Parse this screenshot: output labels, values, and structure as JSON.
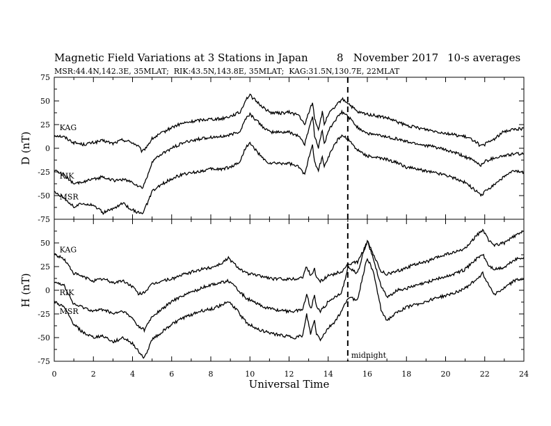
{
  "chart_data": {
    "type": "line",
    "title": "Magnetic Field Variations at 3 Stations in Japan",
    "date_text": "8   November 2017",
    "averaging": "10-s averages",
    "subtitle": "MSR:44.4N,142.3E, 35MLAT;  RIK:43.5N,143.8E, 35MLAT;  KAG:31.5N,130.7E, 22MLAT",
    "xlabel": "Universal Time",
    "xlim": [
      0,
      24
    ],
    "xticks": [
      "0",
      "2",
      "4",
      "6",
      "8",
      "10",
      "12",
      "14",
      "16",
      "18",
      "20",
      "22",
      "24"
    ],
    "marker": {
      "x": 15,
      "label": "midnight",
      "style": "dashed"
    },
    "panels": [
      {
        "ylabel": "D (nT)",
        "ylim": [
          -75,
          75
        ],
        "yticks": [
          "75",
          "50",
          "25",
          "0",
          "-25",
          "-50",
          "-75"
        ],
        "labels": [
          {
            "text": "KAG",
            "x": 0.2,
            "y": 19
          },
          {
            "text": "RIK",
            "x": 0.2,
            "y": -32
          },
          {
            "text": "MSR",
            "x": 0.2,
            "y": -54
          }
        ],
        "series": [
          {
            "name": "KAG",
            "x": [
              0,
              0.5,
              1,
              1.5,
              2,
              2.5,
              3,
              3.5,
              4,
              4.3,
              4.5,
              4.8,
              5,
              5.5,
              6,
              6.5,
              7,
              7.5,
              8,
              8.5,
              9,
              9.5,
              9.8,
              10,
              10.3,
              10.7,
              11,
              11.5,
              12,
              12.5,
              12.8,
              13,
              13.2,
              13.3,
              13.5,
              13.7,
              13.8,
              14,
              14.3,
              14.7,
              15,
              15.5,
              16,
              16.5,
              17,
              17.5,
              18,
              18.5,
              19,
              19.5,
              20,
              20.5,
              21,
              21.5,
              21.8,
              22,
              22.5,
              23,
              23.5,
              24
            ],
            "values": [
              14,
              12,
              6,
              4,
              6,
              8,
              5,
              9,
              6,
              2,
              -4,
              4,
              10,
              16,
              22,
              26,
              28,
              30,
              31,
              31,
              34,
              38,
              52,
              56,
              50,
              43,
              38,
              37,
              38,
              35,
              24,
              38,
              48,
              32,
              20,
              38,
              25,
              36,
              42,
              52,
              48,
              38,
              36,
              34,
              32,
              28,
              24,
              22,
              20,
              18,
              16,
              14,
              12,
              8,
              2,
              4,
              10,
              18,
              20,
              21
            ]
          },
          {
            "name": "RIK",
            "x": [
              0,
              0.5,
              1,
              1.5,
              2,
              2.5,
              3,
              3.5,
              4,
              4.3,
              4.5,
              4.8,
              5,
              5.5,
              6,
              6.5,
              7,
              7.5,
              8,
              8.5,
              9,
              9.5,
              9.8,
              10,
              10.3,
              10.7,
              11,
              11.5,
              12,
              12.5,
              12.8,
              13,
              13.2,
              13.3,
              13.5,
              13.7,
              13.8,
              14,
              14.3,
              14.7,
              15,
              15.5,
              16,
              16.5,
              17,
              17.5,
              18,
              18.5,
              19,
              19.5,
              20,
              20.5,
              21,
              21.5,
              21.8,
              22,
              22.5,
              23,
              23.5,
              24
            ],
            "values": [
              -23,
              -28,
              -38,
              -35,
              -33,
              -30,
              -34,
              -33,
              -36,
              -40,
              -42,
              -28,
              -14,
              -6,
              0,
              5,
              8,
              10,
              12,
              12,
              14,
              18,
              32,
              36,
              30,
              22,
              17,
              17,
              17,
              13,
              4,
              20,
              34,
              14,
              0,
              20,
              5,
              18,
              28,
              38,
              34,
              22,
              16,
              14,
              12,
              10,
              7,
              5,
              3,
              1,
              -2,
              -5,
              -9,
              -14,
              -18,
              -14,
              -10,
              -8,
              -6,
              -6
            ]
          },
          {
            "name": "MSR",
            "x": [
              0,
              0.5,
              1,
              1.5,
              2,
              2.5,
              3,
              3.5,
              4,
              4.3,
              4.5,
              4.8,
              5,
              5.5,
              6,
              6.5,
              7,
              7.5,
              8,
              8.5,
              9,
              9.5,
              9.8,
              10,
              10.3,
              10.7,
              11,
              11.5,
              12,
              12.5,
              12.8,
              13,
              13.2,
              13.3,
              13.5,
              13.7,
              13.8,
              14,
              14.3,
              14.7,
              15,
              15.5,
              16,
              16.5,
              17,
              17.5,
              18,
              18.5,
              19,
              19.5,
              20,
              20.5,
              21,
              21.5,
              21.8,
              22,
              22.5,
              23,
              23.5,
              24
            ],
            "values": [
              -46,
              -52,
              -62,
              -58,
              -60,
              -68,
              -64,
              -58,
              -65,
              -68,
              -70,
              -56,
              -46,
              -38,
              -32,
              -28,
              -26,
              -24,
              -22,
              -22,
              -20,
              -14,
              2,
              5,
              -2,
              -12,
              -16,
              -16,
              -16,
              -20,
              -28,
              -10,
              5,
              -15,
              -24,
              -8,
              -20,
              -10,
              4,
              14,
              10,
              -2,
              -8,
              -10,
              -12,
              -15,
              -20,
              -22,
              -24,
              -26,
              -28,
              -32,
              -36,
              -44,
              -50,
              -46,
              -38,
              -30,
              -24,
              -26
            ]
          }
        ]
      },
      {
        "ylabel": "H (nT)",
        "ylim": [
          -75,
          75
        ],
        "yticks": [
          "",
          "50",
          "25",
          "0",
          "-25",
          "-50",
          "-75"
        ],
        "labels": [
          {
            "text": "KAG",
            "x": 0.2,
            "y": 40
          },
          {
            "text": "RIK",
            "x": 0.2,
            "y": -5
          },
          {
            "text": "MSR",
            "x": 0.2,
            "y": -25
          }
        ],
        "series": [
          {
            "name": "KAG",
            "x": [
              0,
              0.5,
              1,
              1.5,
              2,
              2.5,
              3,
              3.5,
              4,
              4.3,
              4.6,
              5,
              5.5,
              6,
              6.5,
              7,
              7.5,
              8,
              8.5,
              8.9,
              9.3,
              9.8,
              10.3,
              10.8,
              11.2,
              11.7,
              12.3,
              12.7,
              12.9,
              13.1,
              13.3,
              13.4,
              13.6,
              13.8,
              14,
              14.3,
              14.7,
              15,
              15.5,
              15.8,
              16,
              16.3,
              16.7,
              17,
              17.5,
              18,
              18.5,
              19,
              19.5,
              20,
              20.5,
              21,
              21.5,
              21.9,
              22.2,
              22.5,
              23,
              23.5,
              24
            ],
            "values": [
              38,
              33,
              18,
              14,
              10,
              12,
              8,
              10,
              4,
              -4,
              -2,
              6,
              10,
              12,
              16,
              19,
              22,
              24,
              28,
              34,
              26,
              18,
              16,
              14,
              12,
              12,
              12,
              14,
              26,
              15,
              22,
              14,
              10,
              12,
              16,
              17,
              20,
              27,
              30,
              42,
              52,
              38,
              20,
              17,
              20,
              24,
              28,
              30,
              34,
              38,
              40,
              44,
              56,
              64,
              52,
              48,
              50,
              57,
              62
            ]
          },
          {
            "name": "RIK",
            "x": [
              0,
              0.5,
              1,
              1.5,
              2,
              2.5,
              3,
              3.5,
              4,
              4.3,
              4.6,
              5,
              5.5,
              6,
              6.5,
              7,
              7.5,
              8,
              8.5,
              8.9,
              9.3,
              9.8,
              10.3,
              10.8,
              11.2,
              11.7,
              12.3,
              12.7,
              12.9,
              13.1,
              13.3,
              13.4,
              13.6,
              13.8,
              14,
              14.3,
              14.7,
              15,
              15.5,
              15.8,
              16,
              16.3,
              16.7,
              17,
              17.5,
              18,
              18.5,
              19,
              19.5,
              20,
              20.5,
              21,
              21.5,
              21.9,
              22.2,
              22.5,
              23,
              23.5,
              24
            ],
            "values": [
              10,
              5,
              -15,
              -18,
              -22,
              -20,
              -25,
              -22,
              -30,
              -38,
              -42,
              -28,
              -20,
              -12,
              -6,
              -2,
              2,
              6,
              8,
              10,
              2,
              -8,
              -14,
              -18,
              -20,
              -22,
              -22,
              -20,
              -4,
              -20,
              -6,
              -16,
              -22,
              -18,
              -12,
              -8,
              -2,
              24,
              18,
              40,
              52,
              34,
              5,
              -8,
              0,
              2,
              5,
              8,
              12,
              14,
              18,
              22,
              32,
              38,
              26,
              22,
              24,
              32,
              35
            ]
          },
          {
            "name": "MSR",
            "x": [
              0,
              0.5,
              1,
              1.5,
              2,
              2.5,
              3,
              3.5,
              4,
              4.3,
              4.6,
              5,
              5.5,
              6,
              6.5,
              7,
              7.5,
              8,
              8.5,
              8.9,
              9.3,
              9.8,
              10.3,
              10.8,
              11.2,
              11.7,
              12.3,
              12.7,
              12.9,
              13.1,
              13.3,
              13.4,
              13.6,
              13.8,
              14,
              14.3,
              14.7,
              15,
              15.5,
              15.8,
              16,
              16.3,
              16.7,
              17,
              17.5,
              18,
              18.5,
              19,
              19.5,
              20,
              20.5,
              21,
              21.5,
              21.9,
              22.2,
              22.5,
              23,
              23.5,
              24
            ],
            "values": [
              -12,
              -18,
              -36,
              -45,
              -50,
              -48,
              -55,
              -50,
              -56,
              -64,
              -72,
              -52,
              -44,
              -36,
              -30,
              -26,
              -22,
              -20,
              -16,
              -12,
              -20,
              -34,
              -40,
              -44,
              -46,
              -48,
              -50,
              -48,
              -26,
              -46,
              -32,
              -46,
              -52,
              -46,
              -40,
              -34,
              -22,
              -8,
              -10,
              18,
              34,
              20,
              -20,
              -32,
              -24,
              -18,
              -15,
              -12,
              -8,
              -6,
              -2,
              2,
              10,
              18,
              6,
              -4,
              2,
              10,
              12
            ]
          }
        ]
      }
    ]
  }
}
